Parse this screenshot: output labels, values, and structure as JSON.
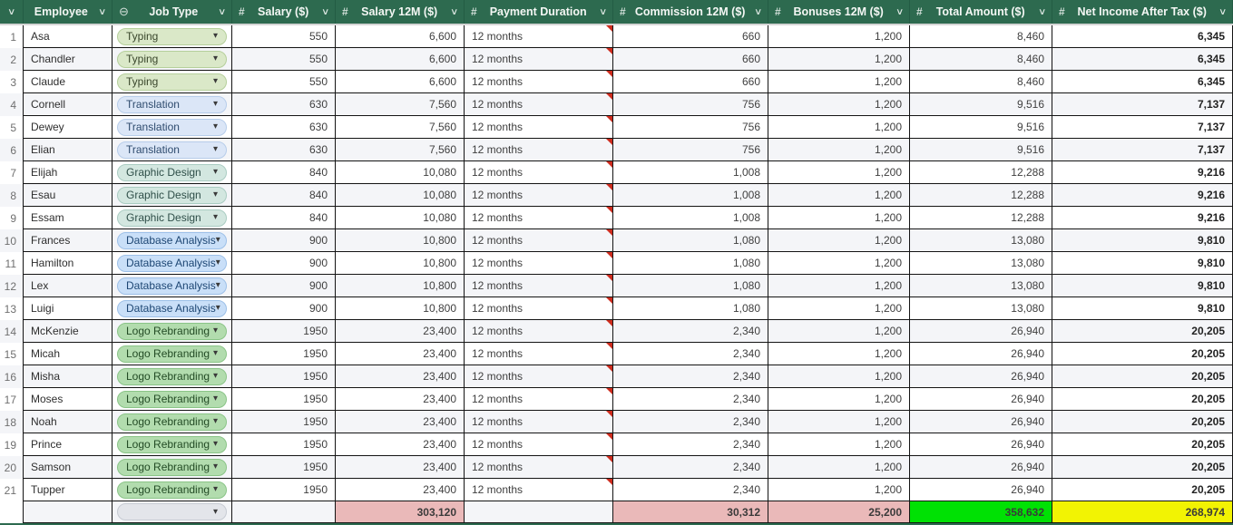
{
  "icons": {
    "chevron_down": "∨",
    "hash": "#",
    "choice": "⊖",
    "dropdown_arrow": "▾"
  },
  "colors": {
    "header_bg": "#2d6a4f",
    "grid_line": "#141414",
    "zebra_row": "#f4f5f8",
    "summary_pink": "#eab9b9",
    "summary_green": "#00e104",
    "summary_yellow": "#f2f303",
    "comment_marker": "#ce2c1e"
  },
  "table": {
    "columns": [
      {
        "label": ""
      },
      {
        "label": "Employee"
      },
      {
        "label": "Job Type"
      },
      {
        "label": "Salary ($)"
      },
      {
        "label": "Salary 12M ($)"
      },
      {
        "label": "Payment Duration"
      },
      {
        "label": "Commission 12M ($)"
      },
      {
        "label": "Bonuses 12M ($)"
      },
      {
        "label": "Total Amount ($)"
      },
      {
        "label": "Net Income After Tax ($)"
      }
    ],
    "job_types": {
      "Typing": {
        "bg": "#dae8c8",
        "border": "#b5cf9b",
        "text": "#3a472c"
      },
      "Translation": {
        "bg": "#dbe6f7",
        "border": "#b7cdea",
        "text": "#2e4b6e"
      },
      "Graphic Design": {
        "bg": "#d3e7e0",
        "border": "#aaccc2",
        "text": "#2f4f49"
      },
      "Database Analysis": {
        "bg": "#c9dff8",
        "border": "#9dc0e8",
        "text": "#1d4673"
      },
      "Logo Rebranding": {
        "bg": "#b2dcae",
        "border": "#8ac487",
        "text": "#234b25"
      }
    },
    "rows": [
      {
        "num": "1",
        "name": "Asa",
        "job": "Typing",
        "salary": "550",
        "salary12": "6,600",
        "duration": "12 months",
        "commission": "660",
        "bonuses": "1,200",
        "total": "8,460",
        "net": "6,345"
      },
      {
        "num": "2",
        "name": "Chandler",
        "job": "Typing",
        "salary": "550",
        "salary12": "6,600",
        "duration": "12 months",
        "commission": "660",
        "bonuses": "1,200",
        "total": "8,460",
        "net": "6,345"
      },
      {
        "num": "3",
        "name": "Claude",
        "job": "Typing",
        "salary": "550",
        "salary12": "6,600",
        "duration": "12 months",
        "commission": "660",
        "bonuses": "1,200",
        "total": "8,460",
        "net": "6,345"
      },
      {
        "num": "4",
        "name": "Cornell",
        "job": "Translation",
        "salary": "630",
        "salary12": "7,560",
        "duration": "12 months",
        "commission": "756",
        "bonuses": "1,200",
        "total": "9,516",
        "net": "7,137"
      },
      {
        "num": "5",
        "name": "Dewey",
        "job": "Translation",
        "salary": "630",
        "salary12": "7,560",
        "duration": "12 months",
        "commission": "756",
        "bonuses": "1,200",
        "total": "9,516",
        "net": "7,137"
      },
      {
        "num": "6",
        "name": "Elian",
        "job": "Translation",
        "salary": "630",
        "salary12": "7,560",
        "duration": "12 months",
        "commission": "756",
        "bonuses": "1,200",
        "total": "9,516",
        "net": "7,137"
      },
      {
        "num": "7",
        "name": "Elijah",
        "job": "Graphic Design",
        "salary": "840",
        "salary12": "10,080",
        "duration": "12 months",
        "commission": "1,008",
        "bonuses": "1,200",
        "total": "12,288",
        "net": "9,216"
      },
      {
        "num": "8",
        "name": "Esau",
        "job": "Graphic Design",
        "salary": "840",
        "salary12": "10,080",
        "duration": "12 months",
        "commission": "1,008",
        "bonuses": "1,200",
        "total": "12,288",
        "net": "9,216"
      },
      {
        "num": "9",
        "name": "Essam",
        "job": "Graphic Design",
        "salary": "840",
        "salary12": "10,080",
        "duration": "12 months",
        "commission": "1,008",
        "bonuses": "1,200",
        "total": "12,288",
        "net": "9,216"
      },
      {
        "num": "10",
        "name": "Frances",
        "job": "Database Analysis",
        "salary": "900",
        "salary12": "10,800",
        "duration": "12 months",
        "commission": "1,080",
        "bonuses": "1,200",
        "total": "13,080",
        "net": "9,810"
      },
      {
        "num": "11",
        "name": "Hamilton",
        "job": "Database Analysis",
        "salary": "900",
        "salary12": "10,800",
        "duration": "12 months",
        "commission": "1,080",
        "bonuses": "1,200",
        "total": "13,080",
        "net": "9,810"
      },
      {
        "num": "12",
        "name": "Lex",
        "job": "Database Analysis",
        "salary": "900",
        "salary12": "10,800",
        "duration": "12 months",
        "commission": "1,080",
        "bonuses": "1,200",
        "total": "13,080",
        "net": "9,810"
      },
      {
        "num": "13",
        "name": "Luigi",
        "job": "Database Analysis",
        "salary": "900",
        "salary12": "10,800",
        "duration": "12 months",
        "commission": "1,080",
        "bonuses": "1,200",
        "total": "13,080",
        "net": "9,810"
      },
      {
        "num": "14",
        "name": "McKenzie",
        "job": "Logo Rebranding",
        "salary": "1950",
        "salary12": "23,400",
        "duration": "12 months",
        "commission": "2,340",
        "bonuses": "1,200",
        "total": "26,940",
        "net": "20,205"
      },
      {
        "num": "15",
        "name": "Micah",
        "job": "Logo Rebranding",
        "salary": "1950",
        "salary12": "23,400",
        "duration": "12 months",
        "commission": "2,340",
        "bonuses": "1,200",
        "total": "26,940",
        "net": "20,205"
      },
      {
        "num": "16",
        "name": "Misha",
        "job": "Logo Rebranding",
        "salary": "1950",
        "salary12": "23,400",
        "duration": "12 months",
        "commission": "2,340",
        "bonuses": "1,200",
        "total": "26,940",
        "net": "20,205"
      },
      {
        "num": "17",
        "name": "Moses",
        "job": "Logo Rebranding",
        "salary": "1950",
        "salary12": "23,400",
        "duration": "12 months",
        "commission": "2,340",
        "bonuses": "1,200",
        "total": "26,940",
        "net": "20,205"
      },
      {
        "num": "18",
        "name": "Noah",
        "job": "Logo Rebranding",
        "salary": "1950",
        "salary12": "23,400",
        "duration": "12 months",
        "commission": "2,340",
        "bonuses": "1,200",
        "total": "26,940",
        "net": "20,205"
      },
      {
        "num": "19",
        "name": "Prince",
        "job": "Logo Rebranding",
        "salary": "1950",
        "salary12": "23,400",
        "duration": "12 months",
        "commission": "2,340",
        "bonuses": "1,200",
        "total": "26,940",
        "net": "20,205"
      },
      {
        "num": "20",
        "name": "Samson",
        "job": "Logo Rebranding",
        "salary": "1950",
        "salary12": "23,400",
        "duration": "12 months",
        "commission": "2,340",
        "bonuses": "1,200",
        "total": "26,940",
        "net": "20,205"
      },
      {
        "num": "21",
        "name": "Tupper",
        "job": "Logo Rebranding",
        "salary": "1950",
        "salary12": "23,400",
        "duration": "12 months",
        "commission": "2,340",
        "bonuses": "1,200",
        "total": "26,940",
        "net": "20,205"
      }
    ],
    "summary": {
      "salary12": "303,120",
      "commission": "30,312",
      "bonuses": "25,200",
      "total": "358,632",
      "net": "268,974"
    }
  }
}
